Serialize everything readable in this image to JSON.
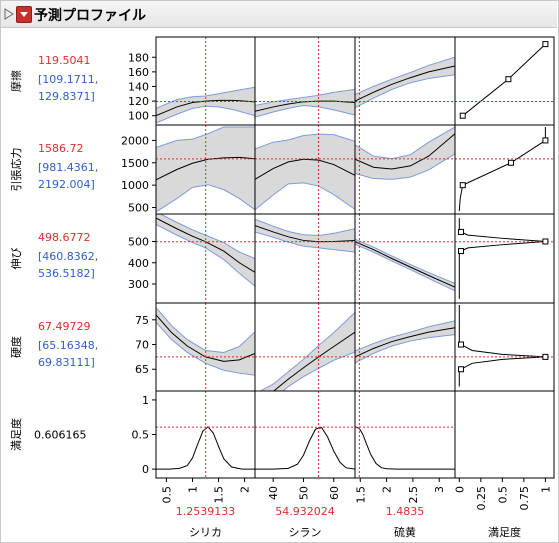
{
  "window": {
    "title": "予測プロファイル"
  },
  "colors": {
    "red": "#d9302c",
    "blue": "#3060c8",
    "band": "#d9d9d9",
    "bandEdge": "#7e9bdc"
  },
  "responses": [
    {
      "name": "摩擦",
      "value": "119.5041",
      "ci_low": "[109.1711,",
      "ci_high": "129.8371]",
      "ylim": [
        90,
        205
      ],
      "ticks": [
        "100",
        "120",
        "140",
        "160",
        "180"
      ],
      "tickvals": [
        100,
        120,
        140,
        160,
        180
      ],
      "current": 119.5
    },
    {
      "name": "引張応力",
      "value": "1586.72",
      "ci_low": "[981.4361,",
      "ci_high": "2192.004]",
      "ylim": [
        400,
        2300
      ],
      "ticks": [
        "500",
        "1000",
        "1500",
        "2000"
      ],
      "tickvals": [
        500,
        1000,
        1500,
        2000
      ],
      "current": 1586.7
    },
    {
      "name": "伸び",
      "value": "498.6772",
      "ci_low": "[460.8362,",
      "ci_high": "536.5182]",
      "ylim": [
        220,
        620
      ],
      "ticks": [
        "300",
        "400",
        "500"
      ],
      "tickvals": [
        300,
        400,
        500
      ],
      "current": 498.7
    },
    {
      "name": "硬度",
      "value": "67.49729",
      "ci_low": "[65.16348,",
      "ci_high": "69.83111]",
      "ylim": [
        61,
        78
      ],
      "ticks": [
        "65",
        "70",
        "75"
      ],
      "tickvals": [
        65,
        70,
        75
      ],
      "current": 67.5
    },
    {
      "name": "満足度",
      "value": "0.606165",
      "ylim": [
        -0.1,
        1.1
      ],
      "ticks": [
        "0",
        "0.5",
        "1"
      ],
      "tickvals": [
        0,
        0.5,
        1
      ],
      "current": 0.606
    }
  ],
  "factors": [
    {
      "name": "シリカ",
      "value": "1.2539133",
      "xlim": [
        0.3,
        2.2
      ],
      "current": 1.254,
      "ticks": [
        "0.5",
        "1",
        "1.5",
        "2"
      ],
      "tickvals": [
        0.5,
        1,
        1.5,
        2
      ]
    },
    {
      "name": "シラン",
      "value": "54.932024",
      "xlim": [
        34,
        67
      ],
      "current": 54.93,
      "ticks": [
        "40",
        "50",
        "60"
      ],
      "tickvals": [
        40,
        50,
        60
      ]
    },
    {
      "name": "硫黄",
      "value": "1.4835",
      "xlim": [
        1.4,
        3.3
      ],
      "current": 1.4835,
      "ticks": [
        "1.5",
        "2",
        "2.5",
        "3"
      ],
      "tickvals": [
        1.5,
        2,
        2.5,
        3
      ]
    }
  ],
  "desirability": {
    "name": "満足度",
    "xlim": [
      -0.05,
      1.1
    ],
    "ticks": [
      "0",
      "0.25",
      "0.5",
      "0.75",
      "1"
    ],
    "tickvals": [
      0,
      0.25,
      0.5,
      0.75,
      1
    ]
  },
  "curves": [
    [
      {
        "x": [
          0.3,
          0.7,
          1.0,
          1.25,
          1.5,
          1.8,
          2.2
        ],
        "y": [
          100,
          112,
          118,
          120,
          121,
          121,
          119
        ],
        "lo": [
          90,
          102,
          110,
          113,
          112,
          108,
          100
        ],
        "hi": [
          110,
          122,
          126,
          127,
          130,
          134,
          139
        ]
      },
      {
        "x": [
          34,
          40,
          45,
          50,
          55,
          60,
          67
        ],
        "y": [
          106,
          112,
          116,
          119,
          120,
          120,
          118
        ],
        "lo": [
          98,
          105,
          110,
          114,
          112,
          108,
          101
        ],
        "hi": [
          114,
          119,
          122,
          125,
          128,
          132,
          136
        ]
      },
      {
        "x": [
          1.4,
          1.75,
          2.1,
          2.45,
          2.8,
          3.3
        ],
        "y": [
          120,
          132,
          143,
          152,
          160,
          168
        ],
        "lo": [
          111,
          124,
          136,
          145,
          151,
          156
        ],
        "hi": [
          129,
          140,
          150,
          159,
          169,
          180
        ]
      }
    ],
    [
      {
        "x": [
          0.3,
          0.7,
          1.0,
          1.3,
          1.6,
          1.9,
          2.2
        ],
        "y": [
          1120,
          1350,
          1490,
          1580,
          1610,
          1620,
          1590
        ],
        "lo": [
          400,
          700,
          950,
          1010,
          900,
          700,
          450
        ],
        "hi": [
          1840,
          2000,
          2030,
          2150,
          2300,
          2300,
          2300
        ]
      },
      {
        "x": [
          34,
          40,
          45,
          50,
          55,
          60,
          67
        ],
        "y": [
          1130,
          1370,
          1520,
          1580,
          1560,
          1460,
          1220
        ],
        "lo": [
          450,
          780,
          1030,
          1050,
          980,
          790,
          460
        ],
        "hi": [
          1810,
          1960,
          2010,
          2110,
          2140,
          2130,
          1980
        ]
      },
      {
        "x": [
          1.4,
          1.75,
          2.1,
          2.45,
          2.8,
          3.3
        ],
        "y": [
          1580,
          1400,
          1360,
          1430,
          1650,
          2150
        ],
        "lo": [
          1260,
          1150,
          1130,
          1180,
          1340,
          1700
        ],
        "hi": [
          1900,
          1650,
          1590,
          1680,
          1960,
          2300
        ]
      }
    ],
    [
      {
        "x": [
          0.3,
          0.7,
          1.0,
          1.25,
          1.6,
          1.9,
          2.2
        ],
        "y": [
          610,
          560,
          525,
          499,
          455,
          400,
          355
        ],
        "lo": [
          580,
          530,
          495,
          470,
          415,
          350,
          290
        ],
        "hi": [
          640,
          590,
          555,
          530,
          495,
          450,
          420
        ]
      },
      {
        "x": [
          34,
          40,
          45,
          50,
          55,
          60,
          67
        ],
        "y": [
          575,
          545,
          522,
          505,
          499,
          500,
          505
        ],
        "lo": [
          545,
          520,
          497,
          478,
          470,
          462,
          450
        ],
        "hi": [
          605,
          572,
          547,
          532,
          528,
          538,
          560
        ]
      },
      {
        "x": [
          1.4,
          1.75,
          2.1,
          2.45,
          2.8,
          3.3
        ],
        "y": [
          499,
          462,
          420,
          380,
          340,
          285
        ],
        "lo": [
          487,
          450,
          408,
          368,
          326,
          268
        ],
        "hi": [
          511,
          474,
          432,
          392,
          354,
          302
        ]
      }
    ],
    [
      {
        "x": [
          0.3,
          0.6,
          0.9,
          1.25,
          1.6,
          1.9,
          2.2
        ],
        "y": [
          76,
          72.4,
          69.7,
          67.5,
          66.6,
          66.9,
          68.2
        ],
        "lo": [
          74.5,
          71,
          68.4,
          66.2,
          64.8,
          64.2,
          63.8
        ],
        "hi": [
          77.5,
          73.8,
          71,
          68.8,
          68.4,
          69.6,
          72.6
        ]
      },
      {
        "x": [
          34,
          40,
          45,
          50,
          55,
          60,
          67
        ],
        "y": [
          58,
          60.5,
          63,
          65.3,
          67.5,
          69.6,
          72.5
        ],
        "lo": [
          56,
          59,
          61.5,
          63.5,
          65.2,
          66.8,
          68.5
        ],
        "hi": [
          60,
          62,
          64.5,
          67,
          69.8,
          72.4,
          76.5
        ]
      },
      {
        "x": [
          1.4,
          1.75,
          2.1,
          2.45,
          2.8,
          3.3
        ],
        "y": [
          67.5,
          69.2,
          70.6,
          71.6,
          72.5,
          73.4
        ],
        "lo": [
          66.3,
          68.2,
          69.7,
          70.7,
          71.4,
          72
        ],
        "hi": [
          68.7,
          70.2,
          71.5,
          72.5,
          73.6,
          74.8
        ]
      }
    ],
    [
      {
        "x": [
          0.3,
          0.55,
          0.75,
          0.9,
          1.0,
          1.1,
          1.2,
          1.3,
          1.4,
          1.5,
          1.6,
          1.75,
          1.95,
          2.2
        ],
        "y": [
          0,
          0,
          0.01,
          0.05,
          0.16,
          0.36,
          0.55,
          0.61,
          0.52,
          0.33,
          0.15,
          0.03,
          0,
          0
        ]
      },
      {
        "x": [
          34,
          40,
          45,
          48,
          50,
          52,
          54,
          56,
          58,
          60,
          62,
          64,
          67
        ],
        "y": [
          0,
          0,
          0.01,
          0.07,
          0.2,
          0.41,
          0.58,
          0.6,
          0.46,
          0.26,
          0.1,
          0.02,
          0
        ]
      },
      {
        "x": [
          1.4,
          1.48,
          1.55,
          1.62,
          1.7,
          1.8,
          1.9,
          2.0,
          2.2,
          2.5,
          3.3
        ],
        "y": [
          0.61,
          0.59,
          0.5,
          0.36,
          0.21,
          0.08,
          0.02,
          0.005,
          0,
          0,
          0
        ]
      }
    ]
  ],
  "desirability_functions": [
    {
      "pts": [
        [
          0.04,
          100
        ],
        [
          0.57,
          150
        ],
        [
          1.0,
          198
        ]
      ],
      "markers": [
        [
          0.04,
          100
        ],
        [
          0.57,
          150
        ],
        [
          1.0,
          198
        ]
      ]
    },
    {
      "pts": [
        [
          0.0,
          420
        ],
        [
          0.01,
          700
        ],
        [
          0.04,
          1000
        ],
        [
          0.6,
          1500
        ],
        [
          1.0,
          2000
        ],
        [
          1.0,
          2300
        ]
      ],
      "markers": [
        [
          0.04,
          1000
        ],
        [
          0.6,
          1500
        ],
        [
          1.0,
          2000
        ]
      ]
    },
    {
      "pts": [
        [
          0.0,
          230
        ],
        [
          0.0,
          440
        ],
        [
          0.02,
          455
        ],
        [
          0.1,
          470
        ],
        [
          0.5,
          485
        ],
        [
          1.0,
          500
        ],
        [
          0.5,
          515
        ],
        [
          0.1,
          530
        ],
        [
          0.02,
          545
        ],
        [
          0.0,
          560
        ],
        [
          0.0,
          610
        ]
      ],
      "markers": [
        [
          0.02,
          455
        ],
        [
          1.0,
          500
        ],
        [
          0.02,
          545
        ]
      ]
    },
    {
      "pts": [
        [
          0.0,
          61.5
        ],
        [
          0.0,
          64.5
        ],
        [
          0.02,
          65
        ],
        [
          0.15,
          66.2
        ],
        [
          0.5,
          67
        ],
        [
          1.0,
          67.5
        ],
        [
          0.5,
          68
        ],
        [
          0.15,
          68.8
        ],
        [
          0.02,
          70
        ],
        [
          0.0,
          70.5
        ],
        [
          0.0,
          78
        ]
      ],
      "markers": [
        [
          0.02,
          65
        ],
        [
          1.0,
          67.5
        ],
        [
          0.02,
          70
        ]
      ]
    }
  ]
}
